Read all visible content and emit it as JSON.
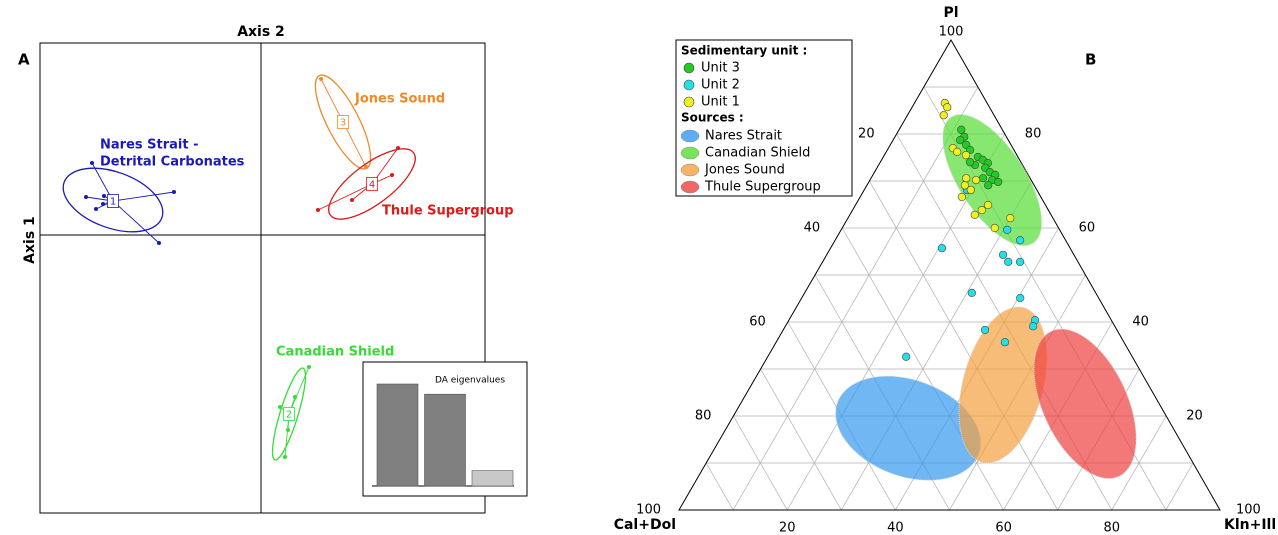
{
  "chart_data": [
    {
      "type": "scatter",
      "panel": "A",
      "xlabel": "Axis 2",
      "ylabel": "Axis 1",
      "xlim": [
        -2.21,
        2.24
      ],
      "ylim": [
        -2.78,
        1.92
      ],
      "series": [
        {
          "name": [
            "Nares Strait -",
            "Detrital Carbonates"
          ],
          "id": 1,
          "color": "#1a1ab8",
          "center": {
            "x": -1.48,
            "y": 0.34
          },
          "x": [
            -1.69,
            -0.87,
            -1.02,
            -1.65,
            -1.58,
            -1.75,
            -1.57
          ],
          "y": [
            0.72,
            0.43,
            -0.08,
            0.26,
            0.31,
            0.38,
            0.39
          ],
          "ellipse": {
            "cx": -1.48,
            "cy": 0.35,
            "rx": 0.52,
            "ry": 0.28,
            "angle": -20
          }
        },
        {
          "name": [
            "Canadian Shield"
          ],
          "id": 2,
          "color": "#33dd33",
          "center": {
            "x": 0.28,
            "y": -1.79
          },
          "x": [
            0.48,
            0.24,
            0.19,
            0.34,
            0.27
          ],
          "y": [
            -1.32,
            -2.22,
            -1.72,
            -1.62,
            -1.95
          ],
          "ellipse": {
            "cx": 0.28,
            "cy": -1.79,
            "rx": 0.48,
            "ry": 0.09,
            "angle": 73
          }
        },
        {
          "name": [
            "Jones Sound"
          ],
          "id": 3,
          "color": "#f0892a",
          "center": {
            "x": 0.82,
            "y": 1.13
          },
          "x": [
            0.6,
            1.05
          ],
          "y": [
            1.56,
            0.68
          ],
          "ellipse": {
            "cx": 0.82,
            "cy": 1.13,
            "rx": 0.52,
            "ry": 0.16,
            "angle": -63
          }
        },
        {
          "name": [
            "Thule Supergroup"
          ],
          "id": 4,
          "color": "#dd1a1a",
          "center": {
            "x": 1.11,
            "y": 0.51
          },
          "x": [
            0.57,
            1.37,
            1.31,
            0.91
          ],
          "y": [
            0.25,
            0.87,
            0.6,
            0.35
          ],
          "ellipse": {
            "cx": 1.11,
            "cy": 0.51,
            "rx": 0.52,
            "ry": 0.2,
            "angle": 37
          }
        }
      ]
    },
    {
      "type": "bar",
      "title": "DA eigenvalues",
      "values": [
        1,
        0.9,
        0.15
      ],
      "colors": [
        "#808080",
        "#808080",
        "#c8c8c8"
      ],
      "ylim": [
        0,
        1.2
      ]
    },
    {
      "type": "ternary",
      "panel": "B",
      "axes": {
        "pl": {
          "label": "Pl",
          "ticks": [
            20,
            40,
            60,
            80,
            100
          ]
        },
        "cal": {
          "label": "Cal+Dol",
          "ticks": [
            20,
            40,
            60,
            80,
            100
          ]
        },
        "kln": {
          "label": "Kln+Ill",
          "ticks": [
            20,
            40,
            60,
            80,
            100
          ]
        }
      },
      "gridlines": [
        10,
        20,
        30,
        40,
        50,
        60,
        70,
        80,
        90
      ],
      "legend_units_title": "Sedimentary unit :",
      "legend_sources_title": "Sources :",
      "sources": [
        {
          "name": "Nares Strait",
          "color": "#3399ee",
          "pl": 17.4,
          "kln": 33.6,
          "rx": 13.9,
          "ry": 8.9,
          "angle": 20
        },
        {
          "name": "Canadian Shield",
          "color": "#55dd33",
          "pl": 70.2,
          "kln": 22.6,
          "rx": 13.9,
          "ry": 6.1,
          "angle": 57
        },
        {
          "name": "Jones Sound",
          "color": "#f5a040",
          "pl": 26.6,
          "kln": 46.5,
          "rx": 7.4,
          "ry": 14.8,
          "angle": 15
        },
        {
          "name": "Thule Supergroup",
          "color": "#ee4040",
          "pl": 22.6,
          "kln": 63.7,
          "rx": 7.8,
          "ry": 14.8,
          "angle": -25
        }
      ],
      "series": [
        {
          "name": "Unit 3",
          "color": "#22cc22",
          "pl": [
            80.9,
            79.4,
            78.7,
            77.7,
            76.6,
            75.1,
            74.5,
            73.8,
            73.4,
            72.8,
            71.9,
            71.3,
            70.6,
            70.2,
            69.8,
            69.1,
            74.0
          ],
          "kln": [
            11.5,
            12.8,
            12.4,
            14.0,
            15.3,
            17.5,
            18.7,
            20.0,
            17.8,
            20.0,
            21.3,
            22.6,
            20.7,
            22.6,
            23.9,
            22.4,
            16.6
          ]
        },
        {
          "name": "Unit 2",
          "color": "#22e0e8",
          "pl": [
            68.1,
            59.6,
            57.4,
            55.7,
            54.3,
            52.8,
            52.8,
            46.2,
            45.1,
            38.3,
            40.4,
            39.1,
            35.7,
            32.6
          ],
          "kln": [
            19.0,
            30.7,
            34.2,
            20.6,
            32.6,
            34.3,
            36.5,
            30.9,
            40.4,
            37.3,
            45.5,
            45.8,
            42.3,
            25.6
          ]
        },
        {
          "name": "Unit 1",
          "color": "#f0f020",
          "pl": [
            86.6,
            85.7,
            84.0,
            77.0,
            76.2,
            75.5,
            70.2,
            69.1,
            68.1,
            66.6,
            64.9,
            63.8,
            62.8,
            62.1,
            60.0,
            70.6
          ],
          "kln": [
            5.6,
            6.5,
            6.7,
            11.9,
            13.1,
            15.1,
            19.6,
            18.1,
            19.7,
            18.8,
            24.5,
            23.9,
            23.1,
            30.0,
            28.2,
            17.6
          ]
        }
      ]
    }
  ]
}
